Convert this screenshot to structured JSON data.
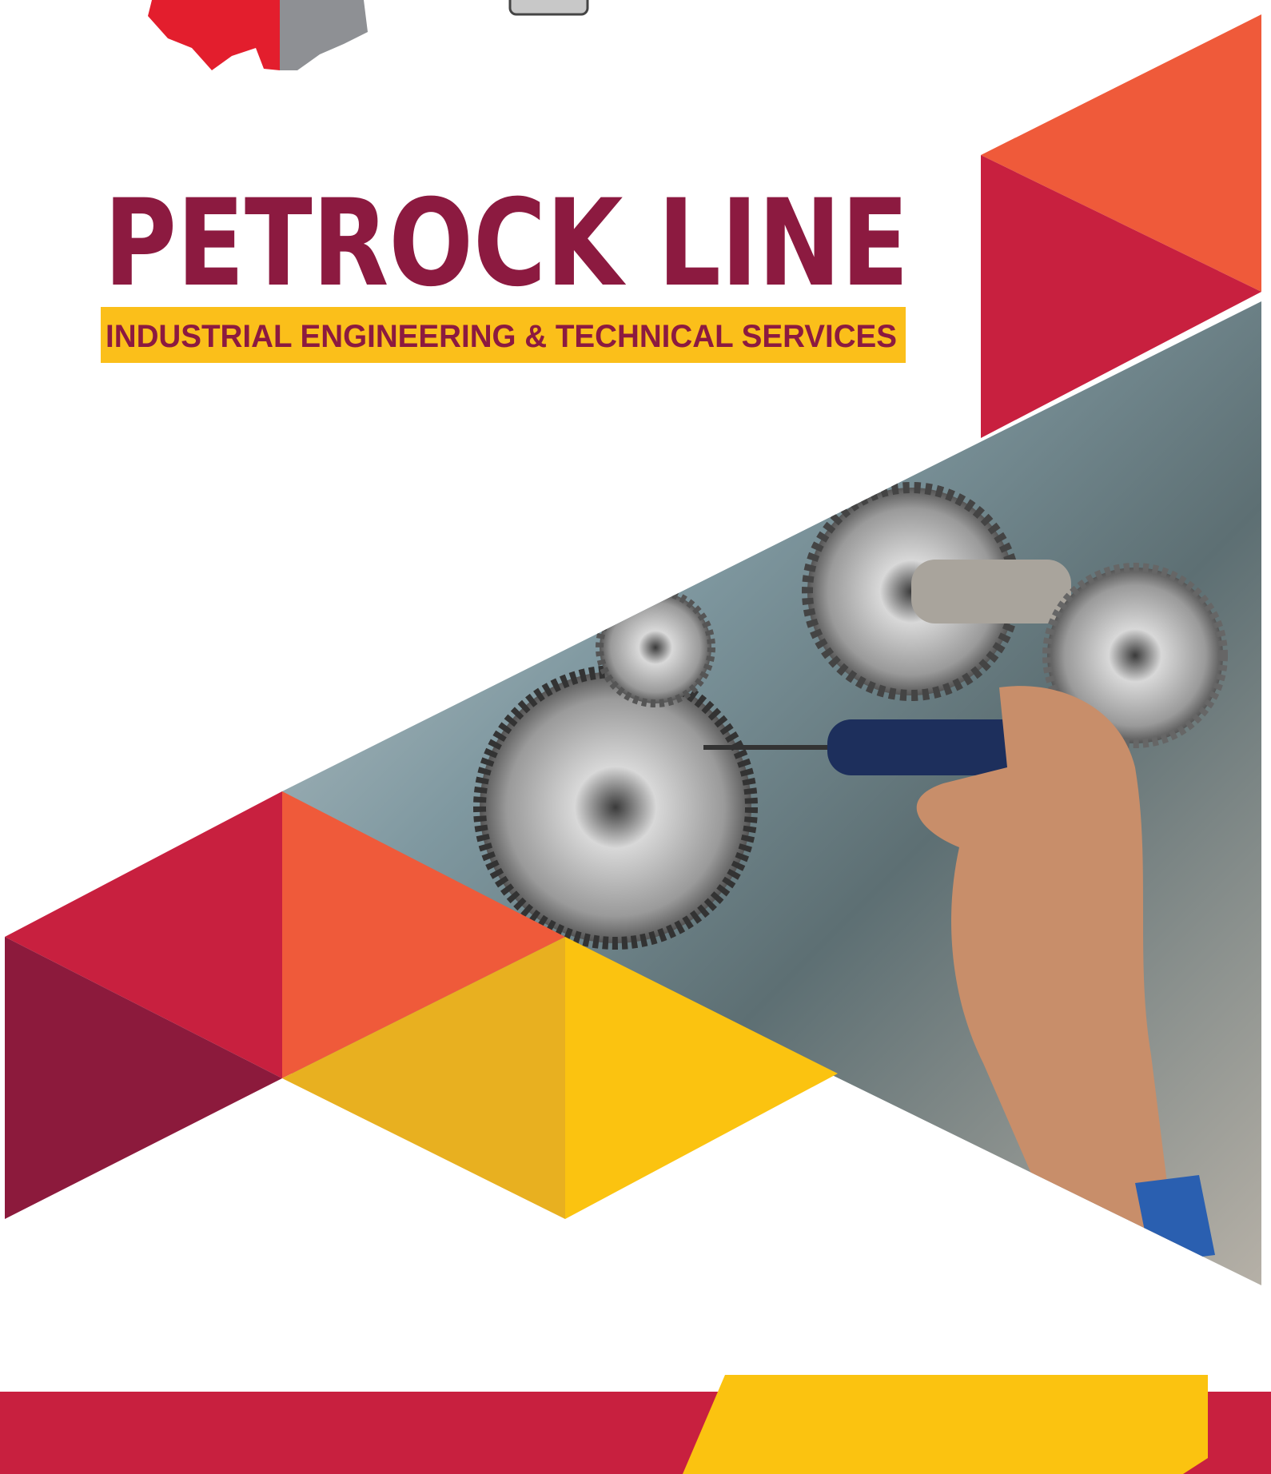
{
  "header": {
    "title": "PETROCK LINE",
    "tagline": "INDUSTRIAL ENGINEERING & TECHNICAL SERVICES"
  }
}
